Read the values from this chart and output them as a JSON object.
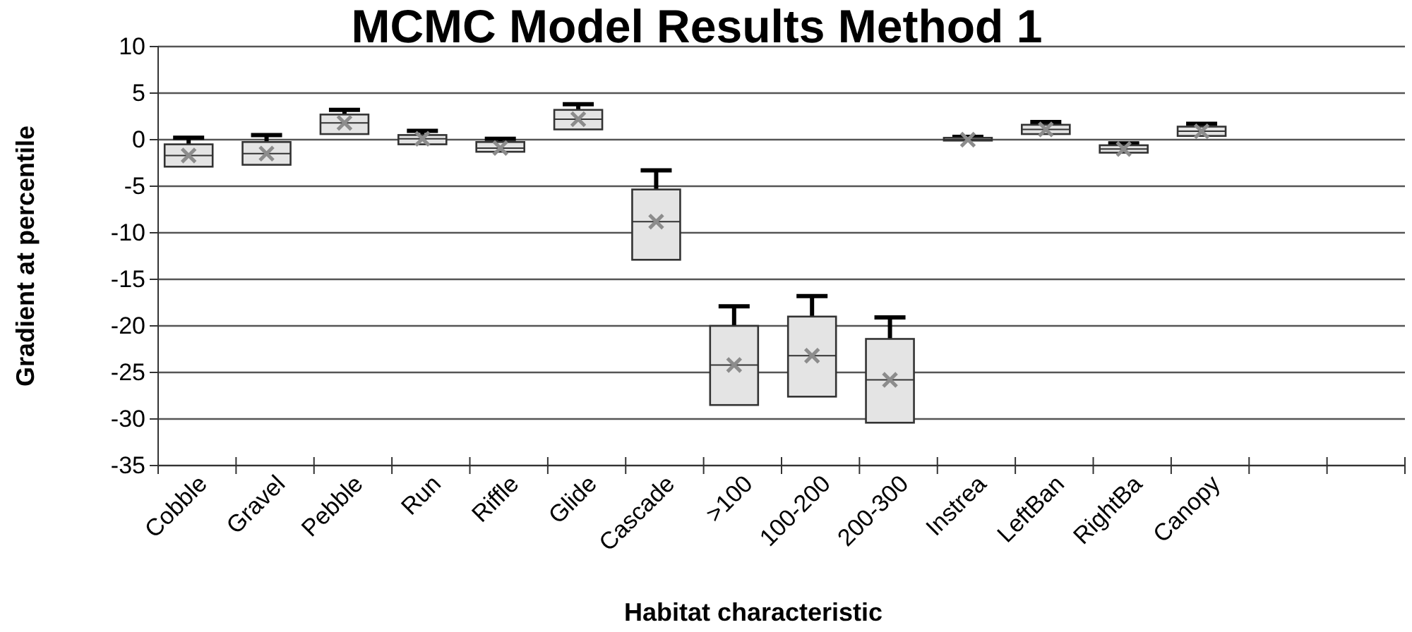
{
  "chart_data": {
    "type": "box",
    "title": "MCMC Model Results Method 1",
    "xlabel": "Habitat characteristic",
    "ylabel": "Gradient at percentile",
    "categories": [
      "Cobble",
      "Gravel",
      "Pebble",
      "Run",
      "Riffle",
      "Glide",
      "Cascade",
      ">100",
      "100-200",
      "200-300",
      "Instrea",
      "LeftBan",
      "RightBa",
      "Canopy",
      null,
      null
    ],
    "boxes": [
      {
        "low": -2.9,
        "q1": -2.9,
        "median": -1.7,
        "q3": -0.5,
        "high": 0.2,
        "mean": -1.7
      },
      {
        "low": -2.7,
        "q1": -2.7,
        "median": -1.5,
        "q3": -0.25,
        "high": 0.5,
        "mean": -1.5
      },
      {
        "low": 0.6,
        "q1": 0.6,
        "median": 1.8,
        "q3": 2.7,
        "high": 3.2,
        "mean": 1.8
      },
      {
        "low": -0.5,
        "q1": -0.5,
        "median": 0.1,
        "q3": 0.5,
        "high": 0.95,
        "mean": 0.1
      },
      {
        "low": -1.3,
        "q1": -1.3,
        "median": -0.9,
        "q3": -0.25,
        "high": 0.1,
        "mean": -0.9
      },
      {
        "low": 1.1,
        "q1": 1.1,
        "median": 2.2,
        "q3": 3.2,
        "high": 3.8,
        "mean": 2.2
      },
      {
        "low": -12.9,
        "q1": -12.9,
        "median": -8.8,
        "q3": -5.35,
        "high": -3.3,
        "mean": -8.8
      },
      {
        "low": -28.5,
        "q1": -28.5,
        "median": -24.2,
        "q3": -20,
        "high": -17.9,
        "mean": -24.2
      },
      {
        "low": -27.6,
        "q1": -27.6,
        "median": -23.2,
        "q3": -19,
        "high": -16.8,
        "mean": -23.2
      },
      {
        "low": -30.4,
        "q1": -30.4,
        "median": -25.8,
        "q3": -21.4,
        "high": -19.1,
        "mean": -25.8
      },
      {
        "low": -0.1,
        "q1": -0.1,
        "median": 0,
        "q3": 0.2,
        "high": 0.3,
        "mean": 0
      },
      {
        "low": 0.6,
        "q1": 0.6,
        "median": 1.1,
        "q3": 1.6,
        "high": 1.9,
        "mean": 1.1
      },
      {
        "low": -1.4,
        "q1": -1.4,
        "median": -1,
        "q3": -0.6,
        "high": -0.4,
        "mean": -1
      },
      {
        "low": 0.4,
        "q1": 0.4,
        "median": 0.9,
        "q3": 1.4,
        "high": 1.7,
        "mean": 0.9
      },
      null,
      null
    ],
    "ylim": [
      -35,
      10
    ],
    "yticks": [
      -35,
      -30,
      -25,
      -20,
      -15,
      -10,
      -5,
      0,
      5,
      10
    ],
    "grid": "y",
    "marker": "cross"
  }
}
